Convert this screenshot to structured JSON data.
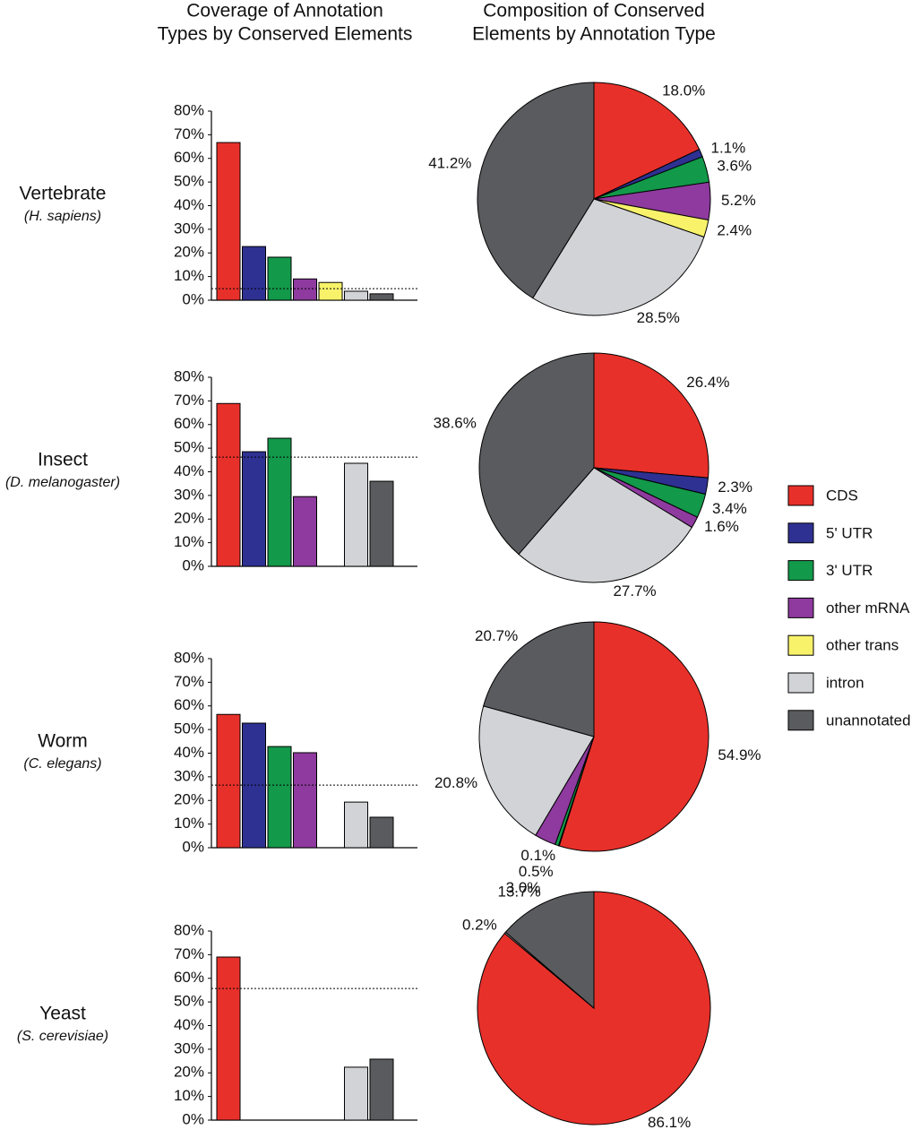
{
  "column_titles": [
    [
      "Coverage of Annotation",
      "Types by Conserved Elements"
    ],
    [
      "Composition of Conserved",
      "Elements by Annotation Type"
    ]
  ],
  "legend": {
    "names": [
      "CDS",
      "5' UTR",
      "3' UTR",
      "other mRNA",
      "other trans",
      "intron",
      "unannotated"
    ],
    "colors": [
      "#e8302a",
      "#2e3192",
      "#12994a",
      "#8e3a9e",
      "#f7f26a",
      "#d1d3d6",
      "#5a5b5e"
    ]
  },
  "chart_data": [
    {
      "type": "bar",
      "title": "Vertebrate",
      "subtitle": "(H. sapiens)",
      "values": [
        66.7,
        22.7,
        18.2,
        9,
        7.5,
        3.8,
        2.7
      ],
      "reference_line": 4.9,
      "ylim": [
        0,
        80
      ],
      "yticks": [
        {
          "value": 0,
          "label": "0%"
        },
        {
          "value": 10,
          "label": "10%"
        },
        {
          "value": 20,
          "label": "20%"
        },
        {
          "value": 30,
          "label": "30%"
        },
        {
          "value": 40,
          "label": "40%"
        },
        {
          "value": 50,
          "label": "50%"
        },
        {
          "value": 60,
          "label": "60%"
        },
        {
          "value": 70,
          "label": "70%"
        },
        {
          "value": 80,
          "label": "80%"
        }
      ]
    },
    {
      "type": "pie",
      "values": [
        18.0,
        1.1,
        3.6,
        5.2,
        2.4,
        28.5,
        41.2
      ],
      "value_labels": [
        "18.0%",
        "1.1%",
        "3.6%",
        "5.2%",
        "2.4%",
        "28.5%",
        "41.2%"
      ]
    },
    {
      "type": "bar",
      "title": "Insect",
      "subtitle": "(D. melanogaster)",
      "values": [
        68.9,
        48.5,
        54.2,
        29.5,
        null,
        43.6,
        36
      ],
      "reference_line": 46.2,
      "ylim": [
        0,
        80
      ],
      "yticks": [
        {
          "value": 0,
          "label": "0%"
        },
        {
          "value": 10,
          "label": "10%"
        },
        {
          "value": 20,
          "label": "20%"
        },
        {
          "value": 30,
          "label": "30%"
        },
        {
          "value": 40,
          "label": "40%"
        },
        {
          "value": 50,
          "label": "50%"
        },
        {
          "value": 60,
          "label": "60%"
        },
        {
          "value": 70,
          "label": "70%"
        },
        {
          "value": 80,
          "label": "80%"
        }
      ]
    },
    {
      "type": "pie",
      "values": [
        26.4,
        2.3,
        3.4,
        1.6,
        null,
        27.7,
        38.6
      ],
      "value_labels": [
        "26.4%",
        "2.3%",
        "3.4%",
        "1.6%",
        null,
        "27.7%",
        "38.6%"
      ]
    },
    {
      "type": "bar",
      "title": "Worm",
      "subtitle": "(C. elegans)",
      "values": [
        56.4,
        52.7,
        42.8,
        40.2,
        null,
        19.3,
        12.9
      ],
      "reference_line": 26.5,
      "ylim": [
        0,
        80
      ],
      "yticks": [
        {
          "value": 0,
          "label": "0%"
        },
        {
          "value": 10,
          "label": "10%"
        },
        {
          "value": 20,
          "label": "20%"
        },
        {
          "value": 30,
          "label": "30%"
        },
        {
          "value": 40,
          "label": "40%"
        },
        {
          "value": 50,
          "label": "50%"
        },
        {
          "value": 60,
          "label": "60%"
        },
        {
          "value": 70,
          "label": "70%"
        },
        {
          "value": 80,
          "label": "80%"
        }
      ]
    },
    {
      "type": "pie",
      "values": [
        54.9,
        0.1,
        0.5,
        3.0,
        null,
        20.8,
        20.7
      ],
      "value_labels": [
        "54.9%",
        "0.1%",
        "0.5%",
        "3.0%",
        null,
        "20.8%",
        "20.7%"
      ]
    },
    {
      "type": "bar",
      "title": "Yeast",
      "subtitle": "(S. cerevisiae)",
      "values": [
        69,
        null,
        null,
        null,
        null,
        22.4,
        25.8
      ],
      "reference_line": 55.7,
      "ylim": [
        0,
        80
      ],
      "yticks": [
        {
          "value": 0,
          "label": "0%"
        },
        {
          "value": 10,
          "label": "10%"
        },
        {
          "value": 20,
          "label": "20%"
        },
        {
          "value": 30,
          "label": "30%"
        },
        {
          "value": 40,
          "label": "40%"
        },
        {
          "value": 50,
          "label": "50%"
        },
        {
          "value": 60,
          "label": "60%"
        },
        {
          "value": 70,
          "label": "70%"
        },
        {
          "value": 80,
          "label": "80%"
        }
      ]
    },
    {
      "type": "pie",
      "values": [
        86.1,
        null,
        null,
        null,
        null,
        0.2,
        13.7
      ],
      "value_labels": [
        "86.1%",
        null,
        null,
        null,
        null,
        "0.2%",
        "13.7%"
      ]
    }
  ]
}
